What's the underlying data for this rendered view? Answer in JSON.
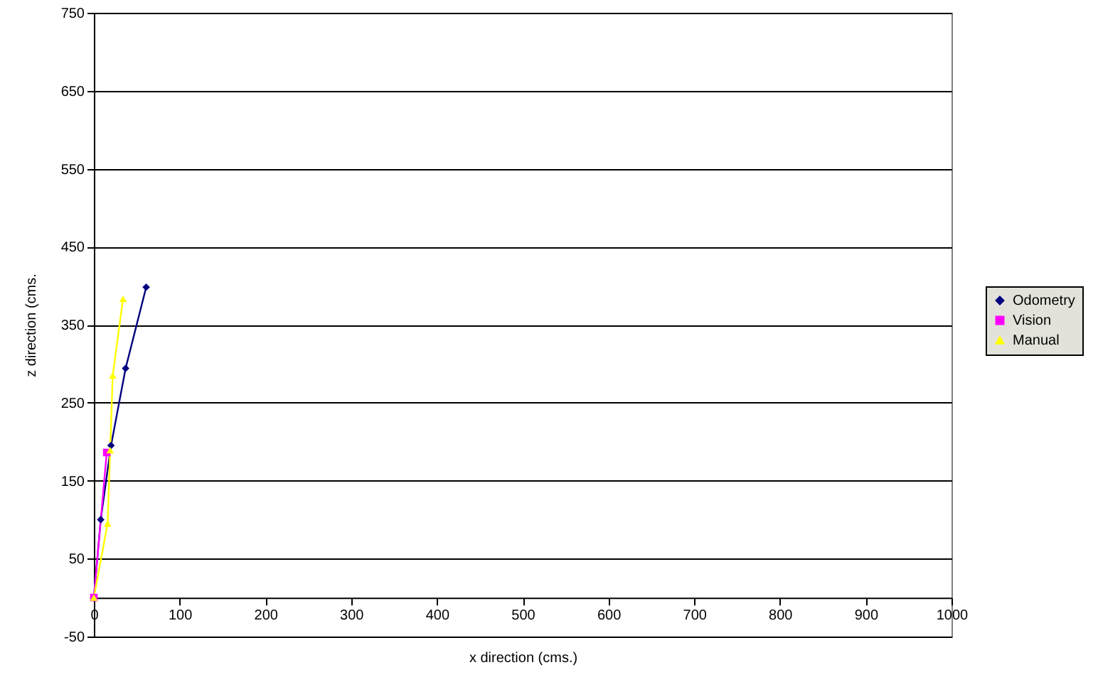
{
  "chart_data": {
    "type": "line",
    "xlabel": "x direction (cms.)",
    "ylabel": "z direction (cms.",
    "xlim": [
      0,
      1000
    ],
    "xticks": [
      0,
      100,
      200,
      300,
      400,
      500,
      600,
      700,
      800,
      900,
      1000
    ],
    "ylim": [
      -50,
      750
    ],
    "yticks": [
      -50,
      50,
      150,
      250,
      350,
      450,
      550,
      650,
      750
    ],
    "grid": "y",
    "legend": "right",
    "series": [
      {
        "name": "Odometry",
        "color": "#000080",
        "marker": "diamond",
        "x": [
          0,
          8,
          20,
          37,
          61
        ],
        "values": [
          0,
          100,
          195,
          294,
          398
        ]
      },
      {
        "name": "Vision",
        "color": "#ff00ff",
        "marker": "square",
        "x": [
          0,
          15
        ],
        "values": [
          0,
          186
        ]
      },
      {
        "name": "Manual",
        "color": "#ffff00",
        "marker": "triangle",
        "x": [
          0,
          16,
          19,
          22,
          34
        ],
        "values": [
          0,
          95,
          189,
          285,
          383
        ]
      }
    ]
  }
}
